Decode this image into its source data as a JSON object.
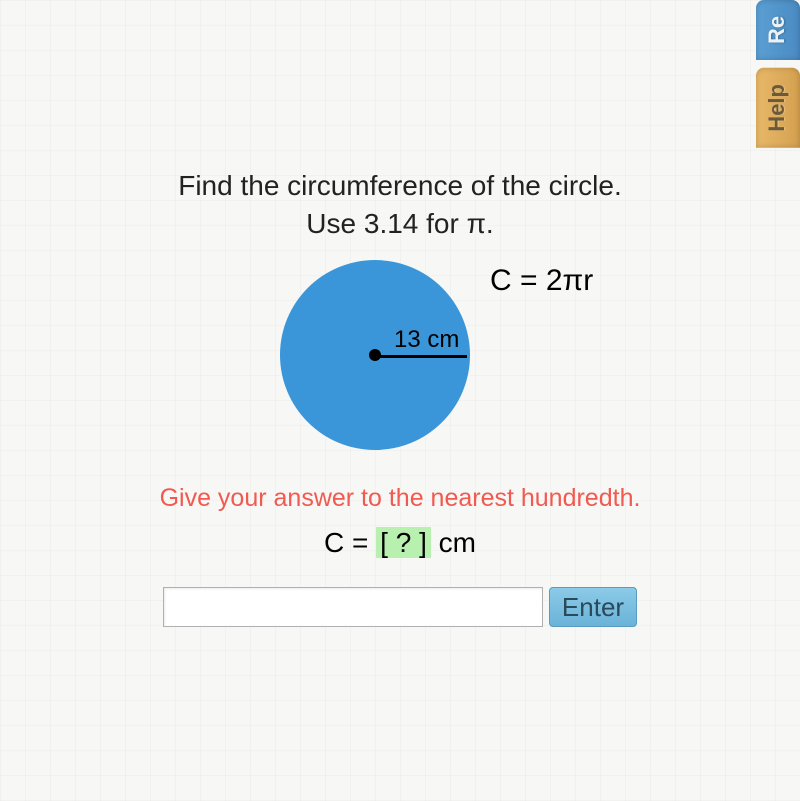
{
  "tabs": {
    "top_label": "Re",
    "help_label": "Help"
  },
  "question": {
    "line1": "Find the circumference of the circle.",
    "line2": "Use 3.14 for π."
  },
  "circle": {
    "radius_label": "13 cm",
    "formula": "C = 2πr",
    "fill_color": "#3a96d8",
    "radius_value": 13
  },
  "hint": "Give your answer to the nearest hundredth.",
  "answer": {
    "prefix": "C = ",
    "blank": "[ ? ]",
    "suffix": " cm"
  },
  "controls": {
    "enter_label": "Enter",
    "input_value": ""
  },
  "colors": {
    "hint_color": "#f05a50",
    "blank_bg": "#b8f0b0",
    "tab_blue": "#4a8bc2",
    "tab_orange": "#d4a050",
    "button_bg": "#6ab3d8"
  }
}
